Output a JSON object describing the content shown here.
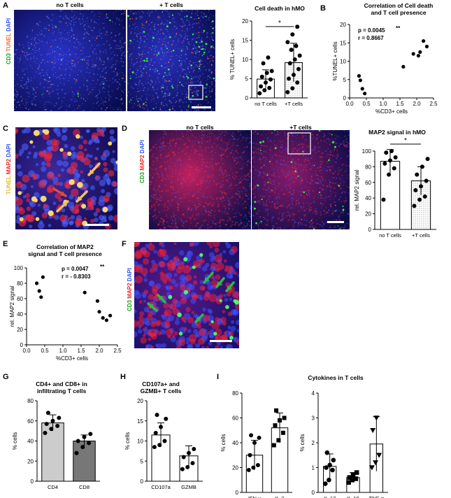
{
  "panels": {
    "A": {
      "letter": "A",
      "micro_labels": [
        "no T cells",
        "+ T cells"
      ],
      "stain_label": [
        {
          "t": "CD3 ",
          "c": "#1aa31a"
        },
        {
          "t": "TUNEL ",
          "c": "#ee7733"
        },
        {
          "t": "DAPI",
          "c": "#3355ee"
        }
      ]
    },
    "B": {
      "letter": "B"
    },
    "C": {
      "letter": "C",
      "stain_label": [
        {
          "t": "TUNEL ",
          "c": "#e0c030"
        },
        {
          "t": "MAP2 ",
          "c": "#ee2222"
        },
        {
          "t": "DAPI",
          "c": "#3355ee"
        }
      ]
    },
    "D": {
      "letter": "D",
      "micro_labels": [
        "no T cells",
        "+T cells"
      ],
      "stain_label": [
        {
          "t": "CD3 ",
          "c": "#1aa31a"
        },
        {
          "t": "MAP2 ",
          "c": "#ee2222"
        },
        {
          "t": "DAPI",
          "c": "#3355ee"
        }
      ]
    },
    "E": {
      "letter": "E"
    },
    "F": {
      "letter": "F",
      "stain_label": [
        {
          "t": "CD3 ",
          "c": "#1aa31a"
        },
        {
          "t": "MAP2 ",
          "c": "#ee2222"
        },
        {
          "t": "DAPI",
          "c": "#3355ee"
        }
      ]
    },
    "G": {
      "letter": "G"
    },
    "H": {
      "letter": "H"
    },
    "I": {
      "letter": "I",
      "title": "Cytokines in T cells"
    }
  },
  "chart_data": [
    {
      "id": "A-bar",
      "type": "bar",
      "title": "Cell death in hMO",
      "categories": [
        "no T cells",
        "+T cells"
      ],
      "values": [
        4.9,
        9.2
      ],
      "errors": [
        2.4,
        5.0
      ],
      "fills": [
        "#ffffff",
        "pattern"
      ],
      "points": [
        [
          1.2,
          2.0,
          2.6,
          3.0,
          4.0,
          4.8,
          5.5,
          6.5,
          7.0,
          9.0,
          10.5
        ],
        [
          1.5,
          2.5,
          4.0,
          5.0,
          6.0,
          7.5,
          9.0,
          10.0,
          11.0,
          12.5,
          13.5,
          14.5,
          16.5,
          18.5
        ]
      ],
      "ylabel": "% TUNEL+ cells",
      "ylim": [
        0,
        20
      ],
      "yticks": [
        0,
        5,
        10,
        15,
        20
      ],
      "significance": "*"
    },
    {
      "id": "B-scatter",
      "type": "scatter",
      "title": "Correlation of Cell death and T cell presence",
      "x": [
        0.28,
        0.32,
        0.38,
        0.45,
        1.6,
        1.9,
        2.05,
        2.1,
        2.2,
        2.3
      ],
      "y": [
        6.0,
        4.8,
        2.5,
        1.2,
        8.5,
        12.0,
        11.5,
        12.5,
        15.5,
        14.0
      ],
      "xlabel": "%CD3+ cells",
      "ylabel": "%TUNEL+ cells",
      "xlim": [
        0,
        2.5
      ],
      "ylim": [
        0,
        20
      ],
      "xticks": [
        0.0,
        0.5,
        1.0,
        1.5,
        2.0,
        2.5
      ],
      "yticks": [
        0,
        5,
        10,
        15,
        20
      ],
      "annotation": [
        "p = 0.0045",
        "**",
        "r = 0.8667"
      ]
    },
    {
      "id": "D-bar",
      "type": "bar",
      "title": "MAP2 signal in hMO",
      "categories": [
        "no T cells",
        "+T cells"
      ],
      "values": [
        87,
        62
      ],
      "errors": [
        15,
        18
      ],
      "fills": [
        "#ffffff",
        "pattern"
      ],
      "points": [
        [
          38,
          70,
          78,
          84,
          88,
          92,
          98,
          100
        ],
        [
          30,
          38,
          42,
          50,
          55,
          62,
          70,
          80,
          90
        ]
      ],
      "ylabel": "rel. MAP2 signal",
      "ylim": [
        0,
        100
      ],
      "yticks": [
        0,
        20,
        40,
        60,
        80,
        100
      ],
      "significance": "*"
    },
    {
      "id": "E-scatter",
      "type": "scatter",
      "title": "Correlation of MAP2 signal and T cell presence",
      "x": [
        0.28,
        0.35,
        0.4,
        0.45,
        1.6,
        1.95,
        2.0,
        2.1,
        2.2,
        2.3
      ],
      "y": [
        80,
        70,
        62,
        88,
        68,
        57,
        43,
        35,
        32,
        38
      ],
      "xlabel": "%CD3+ cells",
      "ylabel": "rel. MAP2 signal",
      "xlim": [
        0,
        2.5
      ],
      "ylim": [
        0,
        100
      ],
      "xticks": [
        0.0,
        0.5,
        1.0,
        1.5,
        2.0,
        2.5
      ],
      "yticks": [
        0,
        20,
        40,
        60,
        80,
        100
      ],
      "annotation": [
        "p = 0.0047",
        "**",
        "r = - 0.8303"
      ]
    },
    {
      "id": "G-bar",
      "type": "bar",
      "title": "CD4+ and CD8+ in infiltrating T cells",
      "categories": [
        "CD4",
        "CD8"
      ],
      "values": [
        58,
        40
      ],
      "errors": [
        8,
        6
      ],
      "fills": [
        "#cccccc",
        "#777777"
      ],
      "points": [
        [
          48,
          52,
          55,
          57,
          60,
          63,
          68
        ],
        [
          28,
          34,
          38,
          40,
          44,
          47
        ]
      ],
      "ylabel": "% cells",
      "ylim": [
        0,
        80
      ],
      "yticks": [
        0,
        20,
        40,
        60,
        80
      ]
    },
    {
      "id": "H-bar",
      "type": "bar",
      "title": "CD107a+ and GZMB+ T cells",
      "categories": [
        "CD107a",
        "GZMB"
      ],
      "values": [
        11.5,
        6.3
      ],
      "errors": [
        3.0,
        2.5
      ],
      "fills": [
        "#ffffff",
        "#ffffff"
      ],
      "points": [
        [
          8.5,
          9.0,
          10.0,
          12.0,
          13.5,
          15.5,
          16.5
        ],
        [
          3.0,
          3.5,
          4.5,
          6.0,
          7.0,
          8.0
        ]
      ],
      "ylabel": "% cells",
      "ylim": [
        0,
        20
      ],
      "yticks": [
        0,
        5,
        10,
        15,
        20
      ]
    },
    {
      "id": "I1-bar",
      "type": "bar",
      "categories": [
        "IFN-γ",
        "IL-2"
      ],
      "values": [
        30,
        52
      ],
      "errors": [
        12,
        12
      ],
      "fills": [
        "#ffffff",
        "#ffffff"
      ],
      "points": [
        [
          18,
          20,
          22,
          30,
          40,
          44,
          46
        ],
        [
          38,
          42,
          48,
          54,
          58,
          60,
          66
        ]
      ],
      "markers": [
        "circle",
        "square"
      ],
      "ylabel": "% cells",
      "ylim": [
        0,
        80
      ],
      "yticks": [
        0,
        20,
        40,
        60,
        80
      ]
    },
    {
      "id": "I2-bar",
      "type": "bar",
      "categories": [
        "IL-17",
        "IL-10",
        "TNF-α"
      ],
      "values": [
        1.05,
        0.6,
        1.95
      ],
      "errors": [
        0.5,
        0.2,
        1.1
      ],
      "fills": [
        "#ffffff",
        "#ffffff",
        "#ffffff"
      ],
      "points": [
        [
          0.35,
          0.5,
          0.9,
          1.0,
          1.1,
          1.3,
          1.6
        ],
        [
          0.4,
          0.5,
          0.55,
          0.6,
          0.7,
          0.8
        ],
        [
          1.0,
          1.2,
          1.5,
          2.5,
          3.0
        ]
      ],
      "markers": [
        "circle",
        "square",
        "triangle-down"
      ],
      "ylabel": "% cells",
      "ylim": [
        0,
        4
      ],
      "yticks": [
        0,
        1,
        2,
        3,
        4
      ]
    }
  ]
}
